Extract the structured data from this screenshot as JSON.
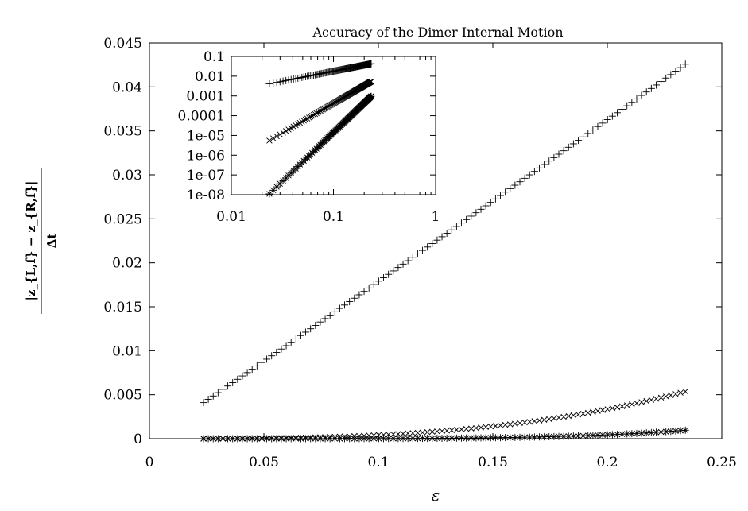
{
  "chart_data": [
    {
      "type": "scatter",
      "title": "Accuracy of the Dimer Internal Motion",
      "xlabel": "ε",
      "ylabel": {
        "numerator": "|z_{L,f} − z_{R,f}|",
        "denominator": "Δt"
      },
      "xlim": [
        0,
        0.25
      ],
      "ylim": [
        0,
        0.045
      ],
      "x_ticks": [
        "0",
        "0.05",
        "0.1",
        "0.15",
        "0.2",
        "0.25"
      ],
      "y_ticks": [
        "0",
        "0.005",
        "0.01",
        "0.015",
        "0.02",
        "0.025",
        "0.03",
        "0.035",
        "0.04",
        "0.045"
      ],
      "grid": false,
      "series": [
        {
          "marker": "+",
          "x_range": [
            0.0236,
            0.2341
          ],
          "points": 100,
          "model": "power",
          "ref_x": 0.0236,
          "ref_y": 0.0041,
          "exponent": 1.02
        },
        {
          "marker": "x",
          "x_range": [
            0.0236,
            0.2341
          ],
          "points": 100,
          "model": "power",
          "ref_x": 0.0236,
          "ref_y": 5.5e-06,
          "exponent": 3.0
        },
        {
          "marker": "*",
          "x_range": [
            0.0236,
            0.2341
          ],
          "points": 100,
          "model": "power",
          "ref_x": 0.0236,
          "ref_y": 1.1e-08,
          "exponent": 4.96
        }
      ]
    },
    {
      "type": "scatter",
      "title": "",
      "xscale": "log",
      "yscale": "log",
      "xlim": [
        0.01,
        1
      ],
      "ylim": [
        1e-08,
        0.1
      ],
      "x_ticks": [
        "0.01",
        "0.1",
        "1"
      ],
      "y_ticks": [
        "1e-08",
        "1e-07",
        "1e-06",
        "1e-05",
        "0.0001",
        "0.001",
        "0.01",
        "0.1"
      ],
      "grid": false,
      "note_series": "same three series as the main plot"
    }
  ]
}
